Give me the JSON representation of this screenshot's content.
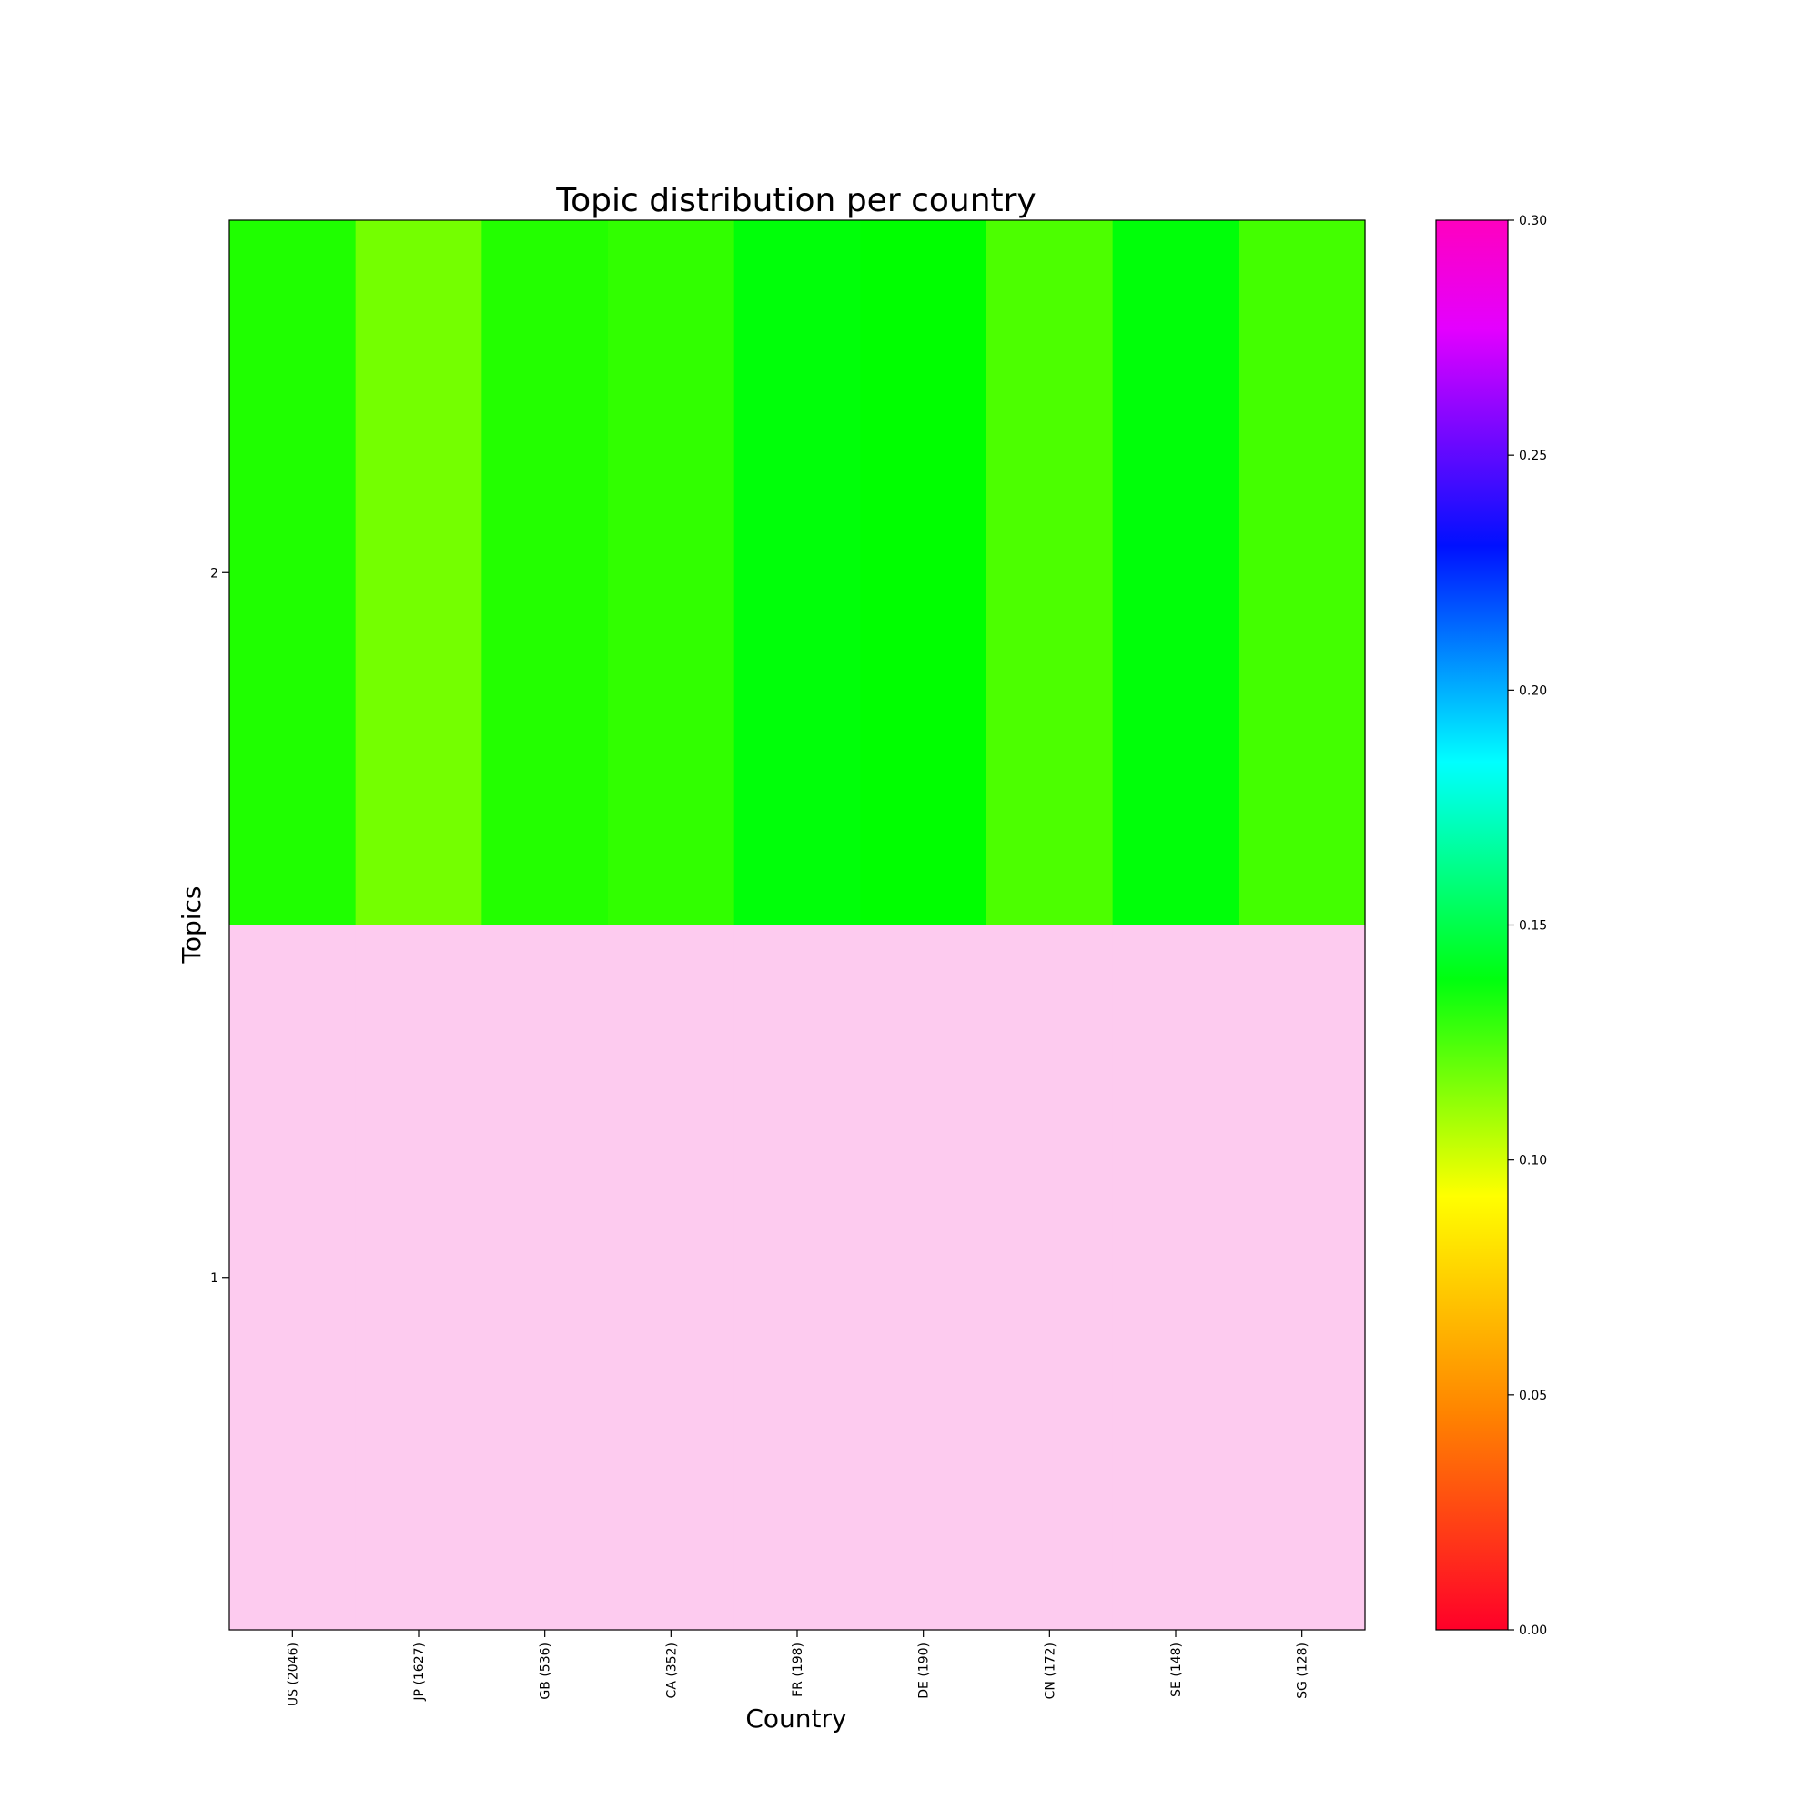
{
  "chart_data": {
    "type": "heatmap",
    "title": "Topic distribution per country",
    "xlabel": "Country",
    "ylabel": "Topics",
    "categories": [
      "US (2046)",
      "JP (1627)",
      "GB (536)",
      "CA (352)",
      "FR (198)",
      "DE (190)",
      "CN (172)",
      "SE (148)",
      "SG (128)"
    ],
    "rows": [
      "2",
      "1"
    ],
    "values": [
      [
        0.107,
        0.088,
        0.106,
        0.103,
        0.116,
        0.114,
        0.097,
        0.116,
        0.099
      ],
      [
        null,
        null,
        null,
        null,
        null,
        null,
        null,
        null,
        null
      ]
    ],
    "colormap": "gist_rainbow",
    "clim": [
      0.0,
      0.3
    ],
    "colorbar_ticks": [
      "0.00",
      "0.05",
      "0.10",
      "0.15",
      "0.20",
      "0.25",
      "0.30"
    ],
    "missing_color": "#fdcbef"
  }
}
